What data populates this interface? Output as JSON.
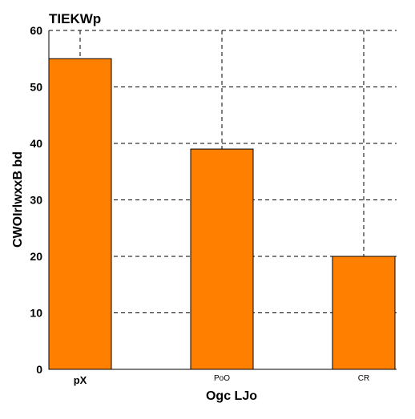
{
  "chart_data": {
    "type": "bar",
    "title": "TIEKWp",
    "xlabel": "Ogc LJo",
    "ylabel": "CWOIrlwxxB bd",
    "categories": [
      "pX",
      "PoO",
      "CR"
    ],
    "values": [
      55,
      39,
      20
    ],
    "ylim": [
      0,
      60
    ],
    "yticks": [
      0,
      10,
      20,
      30,
      40,
      50,
      60
    ],
    "grid": true,
    "colors": {
      "bar": "#ff7f00",
      "bar_edge": "#000000",
      "grid": "#000000",
      "text": "#000000"
    }
  }
}
